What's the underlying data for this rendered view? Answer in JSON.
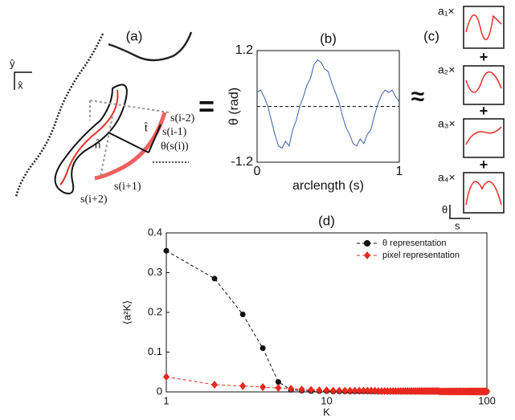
{
  "panel_a": {
    "label": "(a)",
    "y_axis": "ŷ",
    "x_axis": "x̂",
    "points": [
      "s(i-2)",
      "s(i-1)",
      "s(i+1)",
      "s(i+2)"
    ],
    "tangent": "t̂",
    "normal": "n̂",
    "angle": "θ(s(i))"
  },
  "relations": [
    "=",
    "≈"
  ],
  "panel_c": {
    "label": "(c)",
    "coefficients": [
      "a₁×",
      "a₂×",
      "a₃×",
      "a₄×"
    ],
    "plus": "+",
    "y_axis": "θ",
    "x_axis": "s"
  },
  "chart_data": [
    {
      "type": "line",
      "title": "(b)",
      "xlabel": "arclength (s)",
      "ylabel": "θ (rad)",
      "xlim": [
        0,
        1
      ],
      "ylim": [
        -1.2,
        1.2
      ],
      "xticks": [
        0,
        1
      ],
      "yticks": [
        -1.2,
        1.2
      ],
      "hline": 0,
      "x": [
        0,
        0.025,
        0.05,
        0.075,
        0.1,
        0.125,
        0.15,
        0.175,
        0.2,
        0.225,
        0.25,
        0.275,
        0.3,
        0.325,
        0.35,
        0.375,
        0.4,
        0.425,
        0.45,
        0.475,
        0.5,
        0.525,
        0.55,
        0.575,
        0.6,
        0.625,
        0.65,
        0.675,
        0.7,
        0.725,
        0.75,
        0.775,
        0.8,
        0.825,
        0.85,
        0.875,
        0.9,
        0.925,
        0.95,
        0.975,
        1
      ],
      "series": [
        {
          "color": "#3a5fa8",
          "values": [
            0.3,
            0.35,
            0.2,
            0.0,
            -0.3,
            -0.6,
            -0.85,
            -0.9,
            -0.75,
            -0.85,
            -0.5,
            -0.3,
            0.0,
            0.2,
            0.45,
            0.6,
            0.9,
            1.0,
            0.95,
            0.8,
            0.75,
            0.5,
            0.3,
            0.1,
            -0.2,
            -0.45,
            -0.6,
            -0.8,
            -0.85,
            -0.7,
            -0.8,
            -0.6,
            -0.5,
            -0.2,
            0.05,
            0.25,
            0.35,
            0.3,
            0.35,
            0.2,
            0.1
          ]
        }
      ]
    },
    {
      "type": "line",
      "title": "(d)",
      "xlabel": "K",
      "ylabel": "⟨a²K⟩",
      "log_x": true,
      "xlim": [
        1,
        100
      ],
      "ylim": [
        0,
        0.4
      ],
      "xticks": [
        1,
        10,
        100
      ],
      "yticks": [
        0,
        0.1,
        0.2,
        0.3,
        0.4
      ],
      "legend": "top-right",
      "x": [
        1,
        2,
        3,
        4,
        5,
        6,
        7,
        8,
        9,
        10,
        11,
        12,
        13,
        14,
        15,
        16,
        17,
        18,
        19,
        20,
        21,
        22,
        23,
        24,
        25,
        26,
        27,
        28,
        29,
        30,
        31,
        32,
        33,
        34,
        35,
        36,
        37,
        38,
        39,
        40,
        41,
        42,
        43,
        44,
        45,
        46,
        47,
        48,
        49,
        50,
        51,
        52,
        53,
        54,
        55,
        56,
        57,
        58,
        59,
        60,
        61,
        62,
        63,
        64,
        65,
        66,
        67,
        68,
        69,
        70,
        71,
        72,
        73,
        74,
        75,
        76,
        77,
        78,
        79,
        80,
        81,
        82,
        83,
        84,
        85,
        86,
        87,
        88,
        89,
        90,
        91,
        92,
        93,
        94,
        95,
        96,
        97,
        98,
        99,
        100
      ],
      "series": [
        {
          "name": "θ representation",
          "color": "#111111",
          "marker": "circle",
          "values": [
            0.355,
            0.285,
            0.195,
            0.11,
            0.025,
            0.005,
            0.003,
            0.002,
            0.002,
            0.002,
            0.001,
            0.001,
            0.001,
            0.001,
            0.001,
            0.001,
            0.001,
            0.001,
            0.001,
            0.001,
            0.001,
            0.001,
            0.001,
            0.001,
            0.001,
            0.001,
            0.001,
            0.001,
            0.001,
            0.001,
            0.001,
            0.001,
            0.001,
            0.001,
            0.001,
            0.001,
            0.001,
            0.001,
            0.001,
            0.001,
            0.001,
            0.001,
            0.001,
            0.001,
            0.001,
            0.001,
            0.001,
            0.001,
            0.001,
            0.001,
            0.001,
            0.001,
            0.001,
            0.001,
            0.001,
            0.001,
            0.001,
            0.001,
            0.001,
            0.001,
            0.001,
            0.001,
            0.001,
            0.001,
            0.001,
            0.001,
            0.001,
            0.001,
            0.001,
            0.001,
            0.001,
            0.001,
            0.001,
            0.001,
            0.001,
            0.001,
            0.001,
            0.001,
            0.001,
            0.001,
            0.001,
            0.001,
            0.001,
            0.001,
            0.001,
            0.001,
            0.001,
            0.001,
            0.001,
            0.001,
            0.001,
            0.001,
            0.001,
            0.001,
            0.001,
            0.001,
            0.001,
            0.001,
            0.001,
            0.001
          ]
        },
        {
          "name": "pixel representation",
          "color": "#e8281e",
          "marker": "diamond",
          "values": [
            0.038,
            0.018,
            0.015,
            0.012,
            0.01,
            0.008,
            0.006,
            0.005,
            0.004,
            0.004,
            0.003,
            0.003,
            0.003,
            0.003,
            0.003,
            0.003,
            0.003,
            0.003,
            0.003,
            0.003,
            0.002,
            0.002,
            0.002,
            0.002,
            0.002,
            0.002,
            0.002,
            0.002,
            0.002,
            0.002,
            0.002,
            0.002,
            0.002,
            0.002,
            0.002,
            0.002,
            0.002,
            0.002,
            0.002,
            0.002,
            0.002,
            0.002,
            0.002,
            0.002,
            0.002,
            0.002,
            0.002,
            0.002,
            0.002,
            0.002,
            0.001,
            0.001,
            0.001,
            0.001,
            0.001,
            0.001,
            0.001,
            0.001,
            0.001,
            0.001,
            0.001,
            0.001,
            0.001,
            0.001,
            0.001,
            0.001,
            0.001,
            0.001,
            0.001,
            0.001,
            0.001,
            0.001,
            0.001,
            0.001,
            0.001,
            0.001,
            0.001,
            0.001,
            0.001,
            0.001,
            0.001,
            0.001,
            0.001,
            0.001,
            0.001,
            0.001,
            0.001,
            0.001,
            0.001,
            0.001,
            0.001,
            0.001,
            0.001,
            0.001,
            0.001,
            0.001,
            0.001,
            0.001,
            0.001,
            0.001
          ]
        }
      ]
    }
  ]
}
